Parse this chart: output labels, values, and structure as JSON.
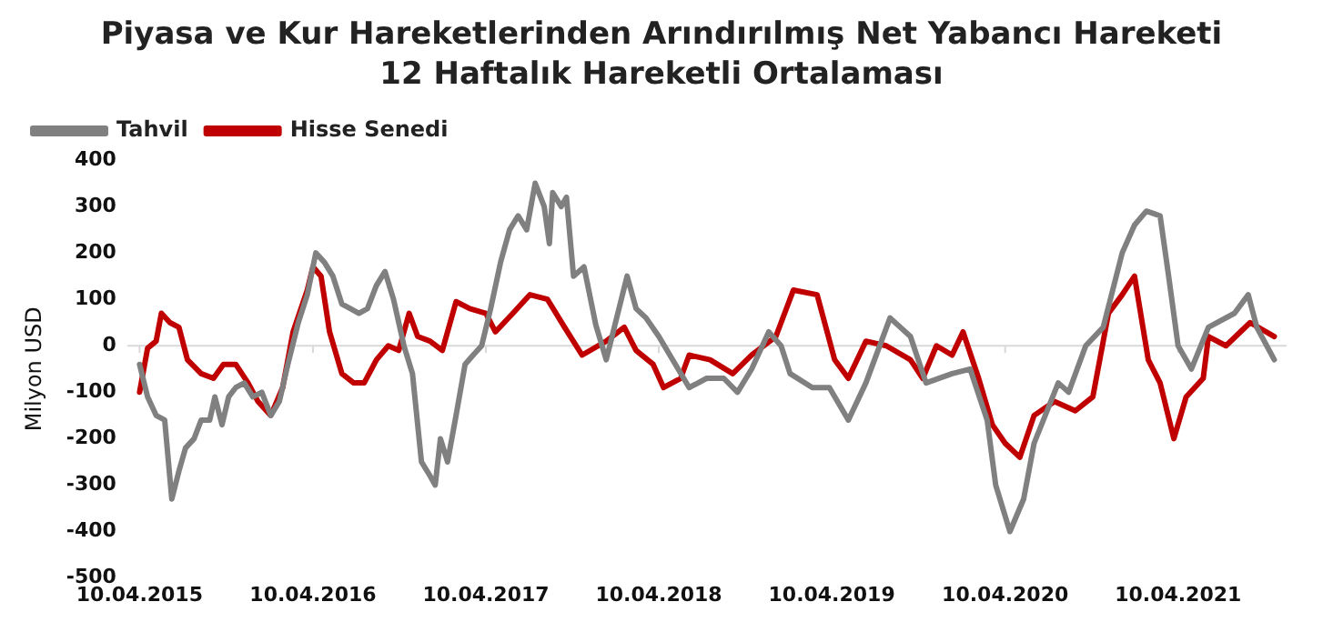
{
  "chart_data": {
    "type": "line",
    "title": "Piyasa ve Kur Hareketlerinden Arındırılmış Net Yabancı Hareketi",
    "subtitle": "12 Haftalık Hareketli Ortalaması",
    "ylabel": "Milyon USD",
    "xlim": [
      "2015-03-15",
      "2021-11-25"
    ],
    "xticks": [
      {
        "value": "2015-04-10",
        "label": "10.04.2015"
      },
      {
        "value": "2016-04-10",
        "label": "10.04.2016"
      },
      {
        "value": "2017-04-10",
        "label": "10.04.2017"
      },
      {
        "value": "2018-04-10",
        "label": "10.04.2018"
      },
      {
        "value": "2019-04-10",
        "label": "10.04.2019"
      },
      {
        "value": "2020-04-10",
        "label": "10.04.2020"
      },
      {
        "value": "2021-04-10",
        "label": "10.04.2021"
      }
    ],
    "ylim": [
      -500,
      400
    ],
    "yticks": [
      -500,
      -400,
      -300,
      -200,
      -100,
      0,
      100,
      200,
      300,
      400
    ],
    "grid": false,
    "legend": "top left",
    "marker": "none",
    "line_style": "solid",
    "ref_lines": [
      {
        "axis": "y",
        "value": 0,
        "color": "#d9d9d9"
      }
    ],
    "series": [
      {
        "name": "Tahvil",
        "color": "#808080",
        "x": [
          "2015-04-10",
          "2015-04-27",
          "2015-05-15",
          "2015-06-02",
          "2015-06-17",
          "2015-07-02",
          "2015-07-16",
          "2015-08-03",
          "2015-08-18",
          "2015-09-05",
          "2015-09-16",
          "2015-10-01",
          "2015-10-15",
          "2015-10-30",
          "2015-11-17",
          "2015-12-05",
          "2015-12-24",
          "2016-01-12",
          "2016-01-30",
          "2016-02-17",
          "2016-03-10",
          "2016-03-29",
          "2016-04-16",
          "2016-05-04",
          "2016-05-22",
          "2016-06-10",
          "2016-06-28",
          "2016-07-16",
          "2016-08-03",
          "2016-08-22",
          "2016-09-09",
          "2016-09-27",
          "2016-10-19",
          "2016-11-06",
          "2016-11-25",
          "2016-12-13",
          "2016-12-24",
          "2017-01-04",
          "2017-01-19",
          "2017-02-06",
          "2017-02-25",
          "2017-03-14",
          "2017-04-01",
          "2017-04-20",
          "2017-05-11",
          "2017-05-30",
          "2017-06-17",
          "2017-07-05",
          "2017-07-23",
          "2017-08-11",
          "2017-08-22",
          "2017-08-29",
          "2017-09-16",
          "2017-09-27",
          "2017-10-12",
          "2017-11-03",
          "2017-11-28",
          "2017-12-20",
          "2018-02-02",
          "2018-02-21",
          "2018-03-14",
          "2018-04-10",
          "2018-05-15",
          "2018-06-13",
          "2018-07-20",
          "2018-08-25",
          "2018-09-23",
          "2018-10-23",
          "2018-11-28",
          "2018-12-24",
          "2019-01-12",
          "2019-02-28",
          "2019-04-05",
          "2019-05-15",
          "2019-06-21",
          "2019-08-11",
          "2019-09-23",
          "2019-10-26",
          "2019-12-20",
          "2020-01-27",
          "2020-03-03",
          "2020-03-21",
          "2020-04-20",
          "2020-05-19",
          "2020-06-10",
          "2020-07-31",
          "2020-08-22",
          "2020-09-27",
          "2020-11-03",
          "2020-12-13",
          "2021-01-08",
          "2021-02-02",
          "2021-03-03",
          "2021-03-21",
          "2021-04-10",
          "2021-05-08",
          "2021-06-13",
          "2021-08-07",
          "2021-09-05",
          "2021-09-23",
          "2021-10-30"
        ],
        "values": [
          -40,
          -110,
          -150,
          -160,
          -330,
          -270,
          -220,
          -200,
          -160,
          -160,
          -110,
          -170,
          -110,
          -90,
          -80,
          -110,
          -100,
          -150,
          -120,
          -40,
          50,
          110,
          200,
          180,
          150,
          90,
          80,
          70,
          80,
          130,
          160,
          100,
          0,
          -60,
          -250,
          -280,
          -300,
          -200,
          -250,
          -150,
          -40,
          -20,
          0,
          80,
          180,
          250,
          280,
          250,
          350,
          300,
          220,
          330,
          300,
          320,
          150,
          170,
          45,
          -30,
          150,
          80,
          60,
          20,
          -40,
          -90,
          -70,
          -70,
          -100,
          -50,
          30,
          0,
          -60,
          -90,
          -90,
          -160,
          -80,
          60,
          20,
          -80,
          -60,
          -50,
          -160,
          -300,
          -400,
          -330,
          -210,
          -80,
          -100,
          0,
          40,
          200,
          260,
          290,
          280,
          150,
          0,
          -50,
          40,
          70,
          110,
          40,
          -30
        ]
      },
      {
        "name": "Hisse Senedi",
        "color": "#c00000",
        "x": [
          "2015-04-10",
          "2015-04-27",
          "2015-05-15",
          "2015-05-26",
          "2015-06-13",
          "2015-07-02",
          "2015-07-20",
          "2015-08-18",
          "2015-09-13",
          "2015-10-04",
          "2015-10-30",
          "2015-11-25",
          "2015-12-16",
          "2016-01-12",
          "2016-02-06",
          "2016-02-28",
          "2016-03-29",
          "2016-04-10",
          "2016-04-27",
          "2016-05-15",
          "2016-06-10",
          "2016-07-05",
          "2016-07-27",
          "2016-08-22",
          "2016-09-16",
          "2016-10-08",
          "2016-10-30",
          "2016-11-17",
          "2016-12-13",
          "2017-01-08",
          "2017-02-06",
          "2017-03-07",
          "2017-04-10",
          "2017-04-30",
          "2017-06-06",
          "2017-07-12",
          "2017-08-18",
          "2017-09-23",
          "2017-10-30",
          "2017-12-20",
          "2018-01-27",
          "2018-02-21",
          "2018-03-29",
          "2018-04-20",
          "2018-05-26",
          "2018-06-13",
          "2018-07-27",
          "2018-09-13",
          "2018-10-23",
          "2018-12-13",
          "2019-01-19",
          "2019-03-10",
          "2019-04-16",
          "2019-05-15",
          "2019-06-21",
          "2019-08-03",
          "2019-09-23",
          "2019-10-19",
          "2019-11-17",
          "2019-12-20",
          "2020-01-12",
          "2020-02-14",
          "2020-03-14",
          "2020-04-10",
          "2020-05-11",
          "2020-06-10",
          "2020-07-23",
          "2020-09-05",
          "2020-10-12",
          "2020-11-14",
          "2020-12-13",
          "2021-01-08",
          "2021-02-06",
          "2021-03-03",
          "2021-04-01",
          "2021-04-27",
          "2021-06-02",
          "2021-06-13",
          "2021-07-20",
          "2021-09-09",
          "2021-10-30"
        ],
        "values": [
          -100,
          -5,
          10,
          70,
          50,
          40,
          -30,
          -60,
          -70,
          -40,
          -40,
          -80,
          -120,
          -150,
          -90,
          30,
          120,
          170,
          150,
          30,
          -60,
          -80,
          -80,
          -30,
          0,
          -10,
          70,
          20,
          10,
          -10,
          95,
          80,
          70,
          30,
          70,
          110,
          100,
          40,
          -20,
          10,
          40,
          -10,
          -40,
          -90,
          -70,
          -20,
          -30,
          -60,
          -20,
          20,
          120,
          110,
          -30,
          -70,
          10,
          0,
          -30,
          -70,
          0,
          -20,
          30,
          -70,
          -170,
          -210,
          -240,
          -150,
          -120,
          -140,
          -110,
          70,
          110,
          150,
          -30,
          -80,
          -200,
          -110,
          -70,
          20,
          0,
          50,
          20
        ]
      }
    ]
  }
}
